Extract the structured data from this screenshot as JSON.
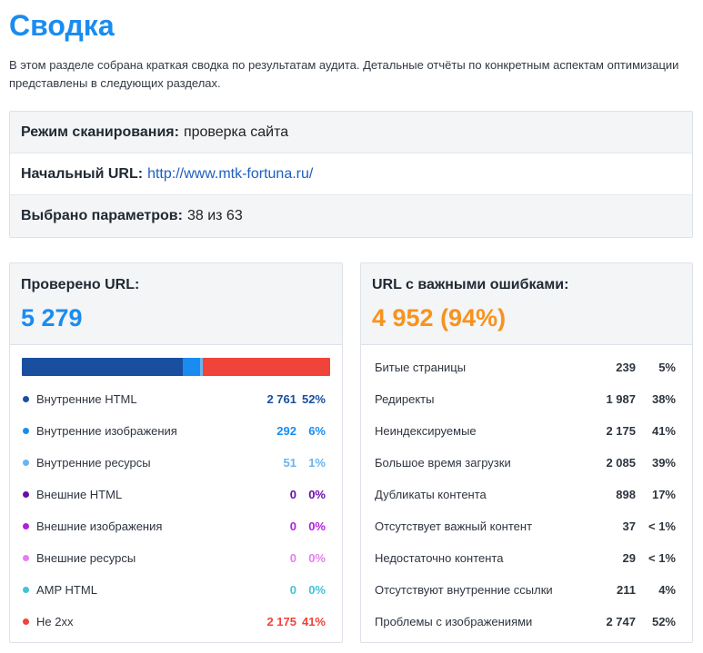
{
  "page": {
    "title": "Сводка",
    "intro": "В этом разделе собрана краткая сводка по результатам аудита. Детальные отчёты по конкретным аспектам оптимизации представлены в следующих разделах."
  },
  "info": {
    "scan_mode_label": "Режим сканирования:",
    "scan_mode_value": "проверка сайта",
    "start_url_label": "Начальный URL:",
    "start_url_value": "http://www.mtk-fortuna.ru/",
    "params_label": "Выбрано параметров:",
    "params_value": "38 из 63"
  },
  "checked": {
    "title": "Проверено URL:",
    "total": "5 279",
    "items": [
      {
        "label": "Внутренние HTML",
        "count": "2 761",
        "pct": "52%",
        "share": 52.3,
        "color": "#1a4fa0"
      },
      {
        "label": "Внутренние изображения",
        "count": "292",
        "pct": "6%",
        "share": 5.5,
        "color": "#1a8cf0"
      },
      {
        "label": "Внутренние ресурсы",
        "count": "51",
        "pct": "1%",
        "share": 1.0,
        "color": "#6ab4f0"
      },
      {
        "label": "Внешние HTML",
        "count": "0",
        "pct": "0%",
        "share": 0,
        "color": "#6a0dad"
      },
      {
        "label": "Внешние изображения",
        "count": "0",
        "pct": "0%",
        "share": 0,
        "color": "#b020e0"
      },
      {
        "label": "Внешние ресурсы",
        "count": "0",
        "pct": "0%",
        "share": 0,
        "color": "#e77ef0"
      },
      {
        "label": "AMP HTML",
        "count": "0",
        "pct": "0%",
        "share": 0,
        "color": "#40c4d8"
      },
      {
        "label": "Не 2xx",
        "count": "2 175",
        "pct": "41%",
        "share": 41.2,
        "color": "#f0433a"
      }
    ]
  },
  "errors": {
    "title": "URL с важными ошибками:",
    "total": "4 952 (94%)",
    "items": [
      {
        "label": "Битые страницы",
        "count": "239",
        "pct": "5%"
      },
      {
        "label": "Редиректы",
        "count": "1 987",
        "pct": "38%"
      },
      {
        "label": "Неиндексируемые",
        "count": "2 175",
        "pct": "41%"
      },
      {
        "label": "Большое время загрузки",
        "count": "2 085",
        "pct": "39%"
      },
      {
        "label": "Дубликаты контента",
        "count": "898",
        "pct": "17%"
      },
      {
        "label": "Отсутствует важный контент",
        "count": "37",
        "pct": "< 1%"
      },
      {
        "label": "Недостаточно контента",
        "count": "29",
        "pct": "< 1%"
      },
      {
        "label": "Отсутствуют внутренние ссылки",
        "count": "211",
        "pct": "4%"
      },
      {
        "label": "Проблемы с изображениями",
        "count": "2 747",
        "pct": "52%"
      }
    ]
  }
}
